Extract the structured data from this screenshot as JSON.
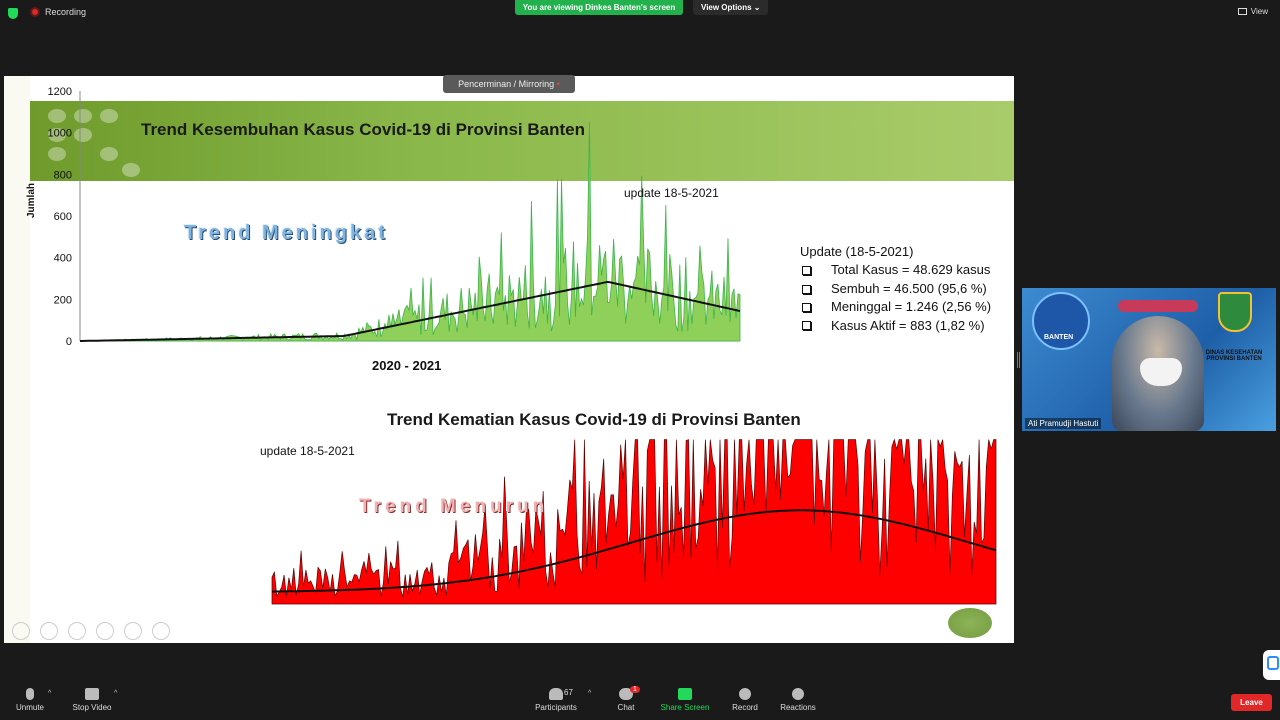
{
  "topbar": {
    "recording_label": "Recording",
    "viewing_banner": "You are viewing Dinkes Banten's screen",
    "view_options_label": "View Options",
    "view_label": "View"
  },
  "share": {
    "mirror_label": "Pencerminan / Mirroring",
    "slide": {
      "title_recovery": "Trend Kesembuhan Kasus Covid-19 di Provinsi Banten",
      "title_death": "Trend Kematian Kasus Covid-19 di Provinsi Banten",
      "update_recovery": "update 18-5-2021",
      "update_death": "update 18-5-2021",
      "trend_up": "Trend Meningkat",
      "trend_down": "Trend Menurun",
      "x_axis_label": "2020 - 2021",
      "y_axis_label": "Jumlah",
      "summary_heading": "Update  (18-5-2021)",
      "summary_items": [
        "Total Kasus  = 48.629 kasus",
        "Sembuh = 46.500  (95,6 %)",
        "Meninggal = 1.246  (2,56 %)",
        "Kasus Aktif =  883  (1,82 %)"
      ]
    }
  },
  "chart_data": [
    {
      "type": "area",
      "title": "Trend Kesembuhan Kasus Covid-19 di Provinsi Banten",
      "xlabel": "2020 - 2021",
      "ylabel": "Jumlah",
      "ylim": [
        0,
        1200
      ],
      "yticks": [
        0,
        200,
        400,
        600,
        800,
        1000,
        1200
      ],
      "series_color": "#3cb44b",
      "trend_color": "#111111"
    },
    {
      "type": "area",
      "title": "Trend Kematian Kasus Covid-19 di Provinsi Banten",
      "series_color": "#ff0000",
      "trend_color": "#111111"
    }
  ],
  "video": {
    "participant_name": "Ati Pramudji Hastuti",
    "department": "DINAS KESEHATAN PROVINSI BANTEN",
    "logo_text": "BANTEN"
  },
  "bottombar": {
    "unmute": "Unmute",
    "stop_video": "Stop Video",
    "participants": "Participants",
    "participants_count": "67",
    "chat": "Chat",
    "chat_badge": "1",
    "share_screen": "Share Screen",
    "record": "Record",
    "reactions": "Reactions",
    "leave": "Leave"
  }
}
